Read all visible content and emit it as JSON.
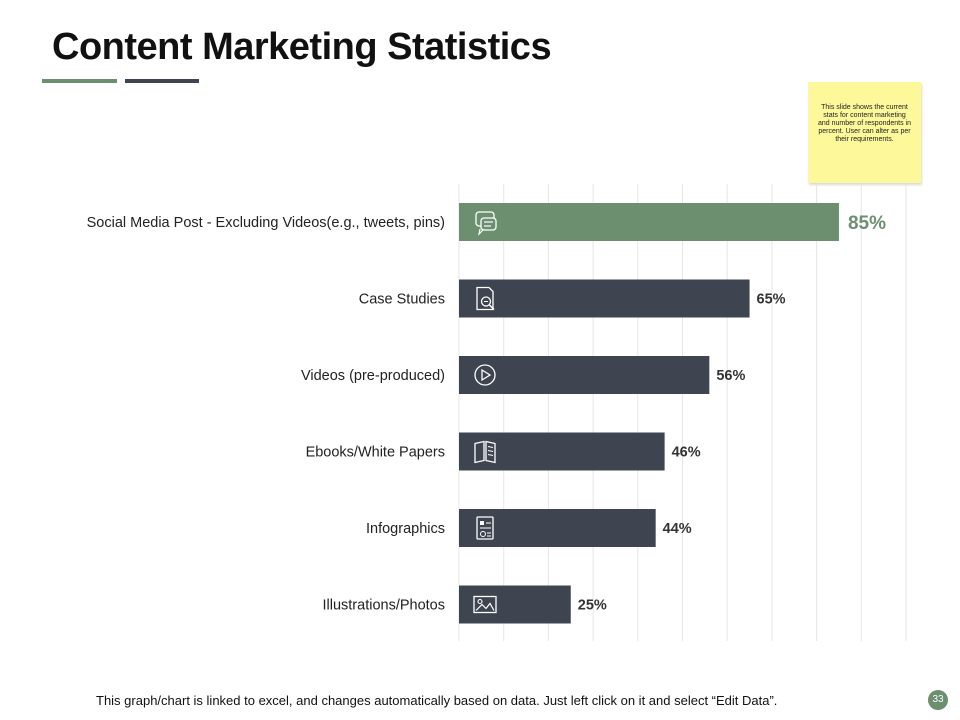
{
  "header": {
    "title": "Content Marketing Statistics"
  },
  "note": {
    "text": "This slide shows the current stats for content marketing and number of respondents in percent. User can alter as per their requirements."
  },
  "footer": {
    "text": "This graph/chart is linked to excel, and changes automatically based on data. Just left click on it and select “Edit Data”.",
    "page_number": "33"
  },
  "colors": {
    "highlight": "#6b8f6f",
    "bar": "#3f4451",
    "grid": "#e6e6e6"
  },
  "chart_data": {
    "type": "bar",
    "orientation": "horizontal",
    "categories": [
      "Social Media Post - Excluding Videos(e.g., tweets, pins)",
      "Case Studies",
      "Videos (pre-produced)",
      "Ebooks/White Papers",
      "Infographics",
      "Illustrations/Photos"
    ],
    "values": [
      85,
      65,
      56,
      46,
      44,
      25
    ],
    "value_labels": [
      "85%",
      "65%",
      "56%",
      "46%",
      "44%",
      "25%"
    ],
    "icons": [
      "chat-icon",
      "document-search-icon",
      "play-icon",
      "book-icon",
      "infographic-icon",
      "image-icon"
    ],
    "highlight_index": 0,
    "xlim": [
      0,
      100
    ],
    "grid": true
  }
}
